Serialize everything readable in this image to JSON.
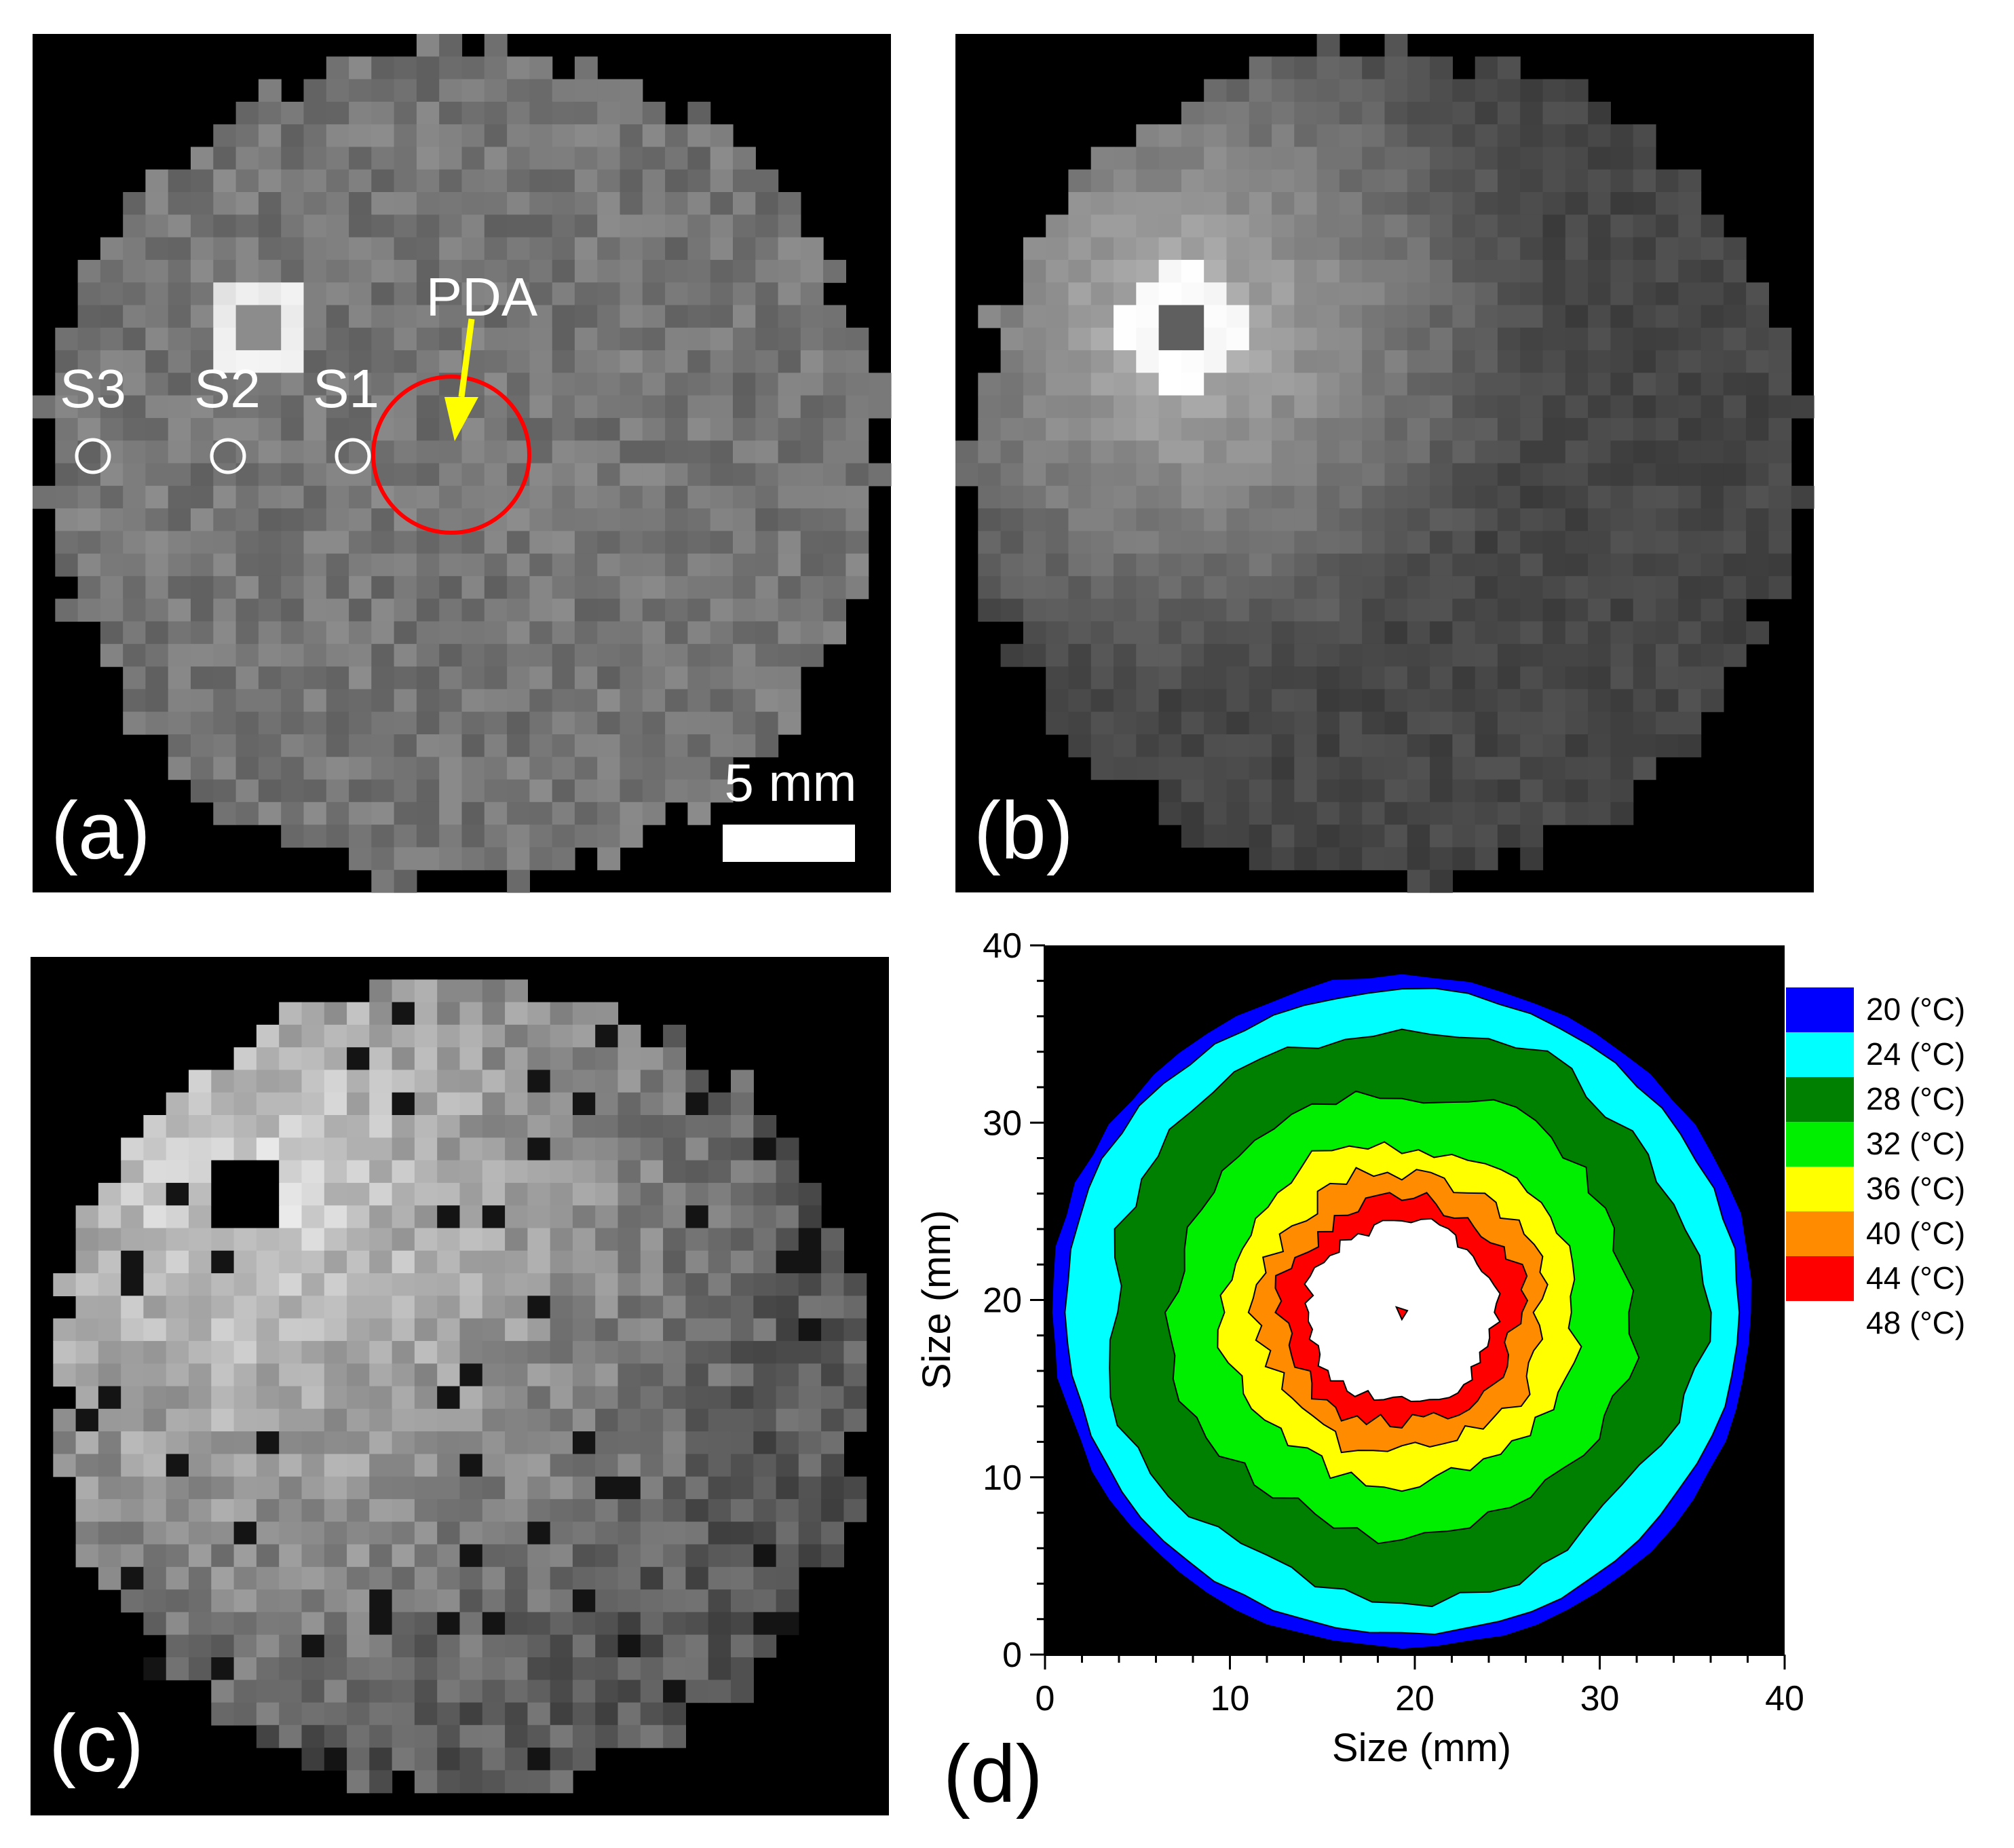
{
  "panels": {
    "a": {
      "label": "(a)",
      "arrow_label": "PDA",
      "arrow_color": "#ffff00",
      "roi_color": "#ff0000",
      "spots": [
        "S1",
        "S2",
        "S3"
      ],
      "scale_bar_label": "5 mm"
    },
    "b": {
      "label": "(b)"
    },
    "c": {
      "label": "(c)"
    },
    "d": {
      "label": "(d)"
    }
  },
  "chart_data": {
    "type": "contour",
    "title": "",
    "xlabel": "Size (mm)",
    "ylabel": "Size (mm)",
    "xlim": [
      0,
      40
    ],
    "ylim": [
      0,
      40
    ],
    "xticks": [
      "0",
      "10",
      "20",
      "30",
      "40"
    ],
    "yticks": [
      "0",
      "10",
      "20",
      "30",
      "40"
    ],
    "legend_position": "right",
    "levels": [
      {
        "label": "20 (°C)",
        "value": 20,
        "color": "#0000ff"
      },
      {
        "label": "24 (°C)",
        "value": 24,
        "color": "#00ffff"
      },
      {
        "label": "28 (°C)",
        "value": 28,
        "color": "#008000"
      },
      {
        "label": "32 (°C)",
        "value": 32,
        "color": "#00ee00"
      },
      {
        "label": "36 (°C)",
        "value": 36,
        "color": "#ffff00"
      },
      {
        "label": "40 (°C)",
        "value": 40,
        "color": "#ff8c00"
      },
      {
        "label": "44 (°C)",
        "value": 44,
        "color": "#ff0000"
      },
      {
        "label": "48 (°C)",
        "value": 48,
        "color": "#ffffff"
      }
    ],
    "hot_spot_center": [
      19.3,
      19.3
    ]
  }
}
